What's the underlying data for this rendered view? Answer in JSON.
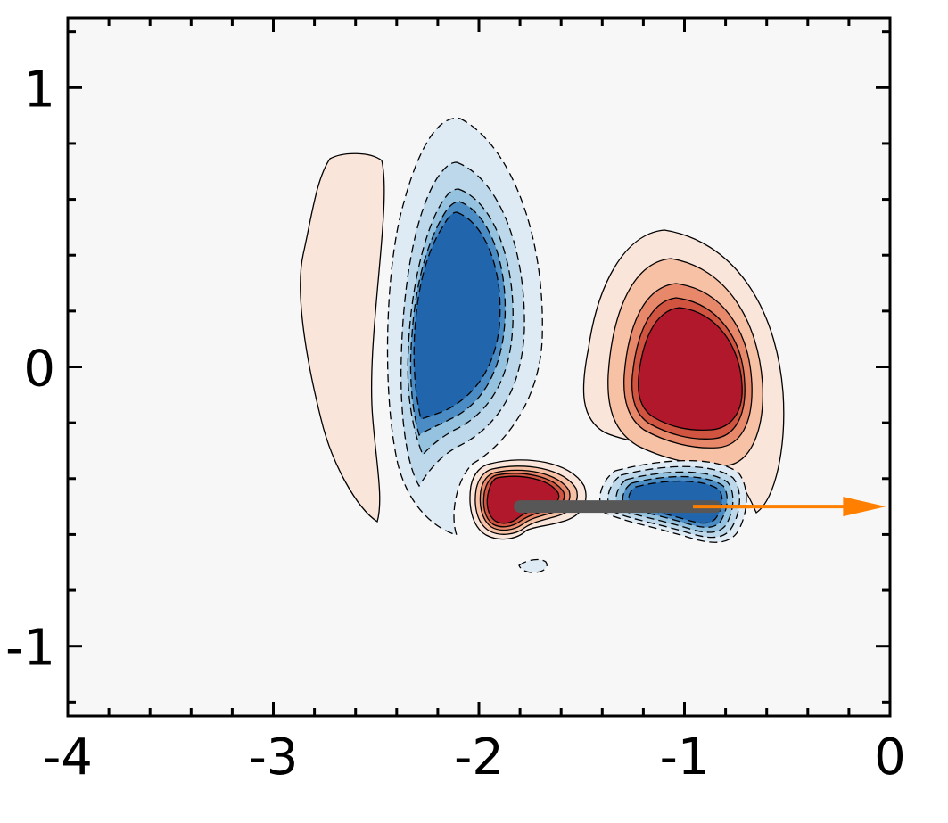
{
  "chart_data": {
    "type": "contour",
    "title": "",
    "xlabel": "",
    "ylabel": "",
    "xlim": [
      -4,
      0
    ],
    "ylim": [
      -1.25,
      1.25
    ],
    "x_ticks": [
      {
        "value": -4,
        "label": "-4"
      },
      {
        "value": -3,
        "label": "-3"
      },
      {
        "value": -2,
        "label": "-2"
      },
      {
        "value": -1,
        "label": "-1"
      },
      {
        "value": 0,
        "label": "0"
      }
    ],
    "y_ticks": [
      {
        "value": 1,
        "label": "1"
      },
      {
        "value": 0,
        "label": "0"
      },
      {
        "value": -1,
        "label": "-1"
      }
    ],
    "minor_tick_step": 0.2,
    "background_color": "#f7f7f7",
    "negative_levels_dashed": true,
    "colors": {
      "positive": [
        "#fae5da",
        "#f7c1a5",
        "#e8886a",
        "#d0543f",
        "#b2182b"
      ],
      "negative": [
        "#deebf4",
        "#bcd8ea",
        "#94c2df",
        "#4a8cc3",
        "#2166ac"
      ]
    },
    "regions": [
      {
        "name": "positive-left-band",
        "sign": "positive",
        "center": [
          -2.7,
          0.1
        ],
        "peak_level": 1
      },
      {
        "name": "negative-main",
        "sign": "negative",
        "center": [
          -2.1,
          0.2
        ],
        "peak_level": 5
      },
      {
        "name": "positive-main",
        "sign": "positive",
        "center": [
          -0.95,
          -0.05
        ],
        "peak_level": 5
      },
      {
        "name": "positive-near-plate",
        "sign": "positive",
        "center": [
          -1.78,
          -0.5
        ],
        "peak_level": 5
      },
      {
        "name": "negative-near-plate",
        "sign": "negative",
        "center": [
          -1.05,
          -0.5
        ],
        "peak_level": 5
      },
      {
        "name": "negative-small",
        "sign": "negative",
        "center": [
          -1.7,
          -0.71
        ],
        "peak_level": 1
      }
    ],
    "plate": {
      "x_start": -1.8,
      "x_end": -0.85,
      "y": -0.5,
      "color": "#575757"
    },
    "arrow": {
      "x_start": -1.0,
      "x_end": -0.02,
      "y": -0.5,
      "color": "#ff8000"
    }
  }
}
